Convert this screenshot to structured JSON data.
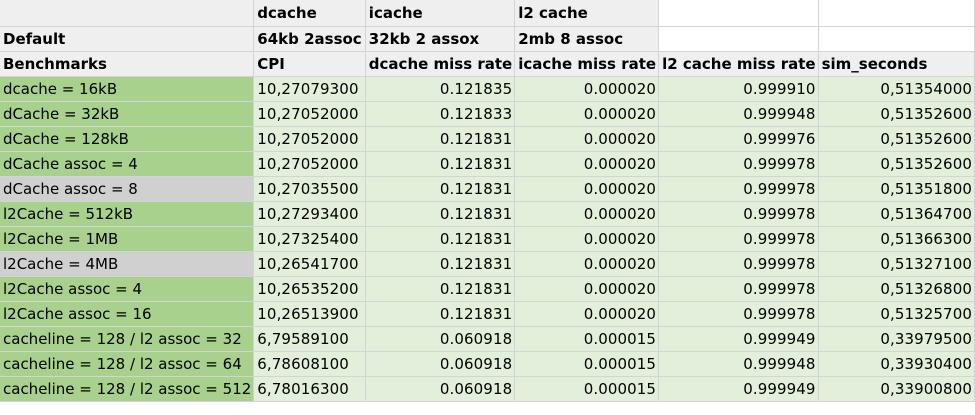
{
  "header_rows": [
    [
      "",
      "dcache",
      "icache",
      "l2 cache",
      "",
      ""
    ],
    [
      "Default",
      "64kb 2assoc",
      "32kb 2 assox",
      "2mb 8 assoc",
      "",
      ""
    ],
    [
      "Benchmarks",
      "CPI",
      "dcache miss rate",
      "icache miss rate",
      "l2 cache miss rate",
      "sim_seconds"
    ]
  ],
  "rows": [
    {
      "label": "dcache = 16kB",
      "cpi": "10,27079300",
      "dcache_miss": "0.121835",
      "icache_miss": "0.000020",
      "l2_miss": "0.999910",
      "sim_seconds": "0,51354000",
      "highlight": "green"
    },
    {
      "label": "dCache = 32kB",
      "cpi": "10,27052000",
      "dcache_miss": "0.121833",
      "icache_miss": "0.000020",
      "l2_miss": "0.999948",
      "sim_seconds": "0,51352600",
      "highlight": "green"
    },
    {
      "label": "dCache = 128kB",
      "cpi": "10,27052000",
      "dcache_miss": "0.121831",
      "icache_miss": "0.000020",
      "l2_miss": "0.999976",
      "sim_seconds": "0,51352600",
      "highlight": "green"
    },
    {
      "label": "dCache assoc = 4",
      "cpi": "10,27052000",
      "dcache_miss": "0.121831",
      "icache_miss": "0.000020",
      "l2_miss": "0.999978",
      "sim_seconds": "0,51352600",
      "highlight": "green"
    },
    {
      "label": "dCache assoc = 8",
      "cpi": "10,27035500",
      "dcache_miss": "0.121831",
      "icache_miss": "0.000020",
      "l2_miss": "0.999978",
      "sim_seconds": "0,51351800",
      "highlight": "gray"
    },
    {
      "label": "l2Cache = 512kB",
      "cpi": "10,27293400",
      "dcache_miss": "0.121831",
      "icache_miss": "0.000020",
      "l2_miss": "0.999978",
      "sim_seconds": "0,51364700",
      "highlight": "green"
    },
    {
      "label": "l2Cache = 1MB",
      "cpi": "10,27325400",
      "dcache_miss": "0.121831",
      "icache_miss": "0.000020",
      "l2_miss": "0.999978",
      "sim_seconds": "0,51366300",
      "highlight": "green"
    },
    {
      "label": "l2Cache = 4MB",
      "cpi": "10,26541700",
      "dcache_miss": "0.121831",
      "icache_miss": "0.000020",
      "l2_miss": "0.999978",
      "sim_seconds": "0,51327100",
      "highlight": "gray"
    },
    {
      "label": "l2Cache assoc = 4",
      "cpi": "10,26535200",
      "dcache_miss": "0.121831",
      "icache_miss": "0.000020",
      "l2_miss": "0.999978",
      "sim_seconds": "0,51326800",
      "highlight": "green"
    },
    {
      "label": "l2Cache assoc = 16",
      "cpi": "10,26513900",
      "dcache_miss": "0.121831",
      "icache_miss": "0.000020",
      "l2_miss": "0.999978",
      "sim_seconds": "0,51325700",
      "highlight": "green"
    },
    {
      "label": "cacheline = 128 / l2 assoc = 32",
      "cpi": "6,79589100",
      "dcache_miss": "0.060918",
      "icache_miss": "0.000015",
      "l2_miss": "0.999949",
      "sim_seconds": "0,33979500",
      "highlight": "green"
    },
    {
      "label": "cacheline = 128 / l2 assoc = 64",
      "cpi": "6,78608100",
      "dcache_miss": "0.060918",
      "icache_miss": "0.000015",
      "l2_miss": "0.999948",
      "sim_seconds": "0,33930400",
      "highlight": "green"
    },
    {
      "label": "cacheline = 128 / l2 assoc = 512",
      "cpi": "6,78016300",
      "dcache_miss": "0.060918",
      "icache_miss": "0.000015",
      "l2_miss": "0.999949",
      "sim_seconds": "0,33900800",
      "highlight": "green"
    }
  ],
  "colors": {
    "header_bg": "#efefef",
    "label_green": "#a9d18e",
    "label_gray": "#d0d0d0",
    "value_bg": "#e2efda",
    "gridline": "#d4d4d4"
  }
}
